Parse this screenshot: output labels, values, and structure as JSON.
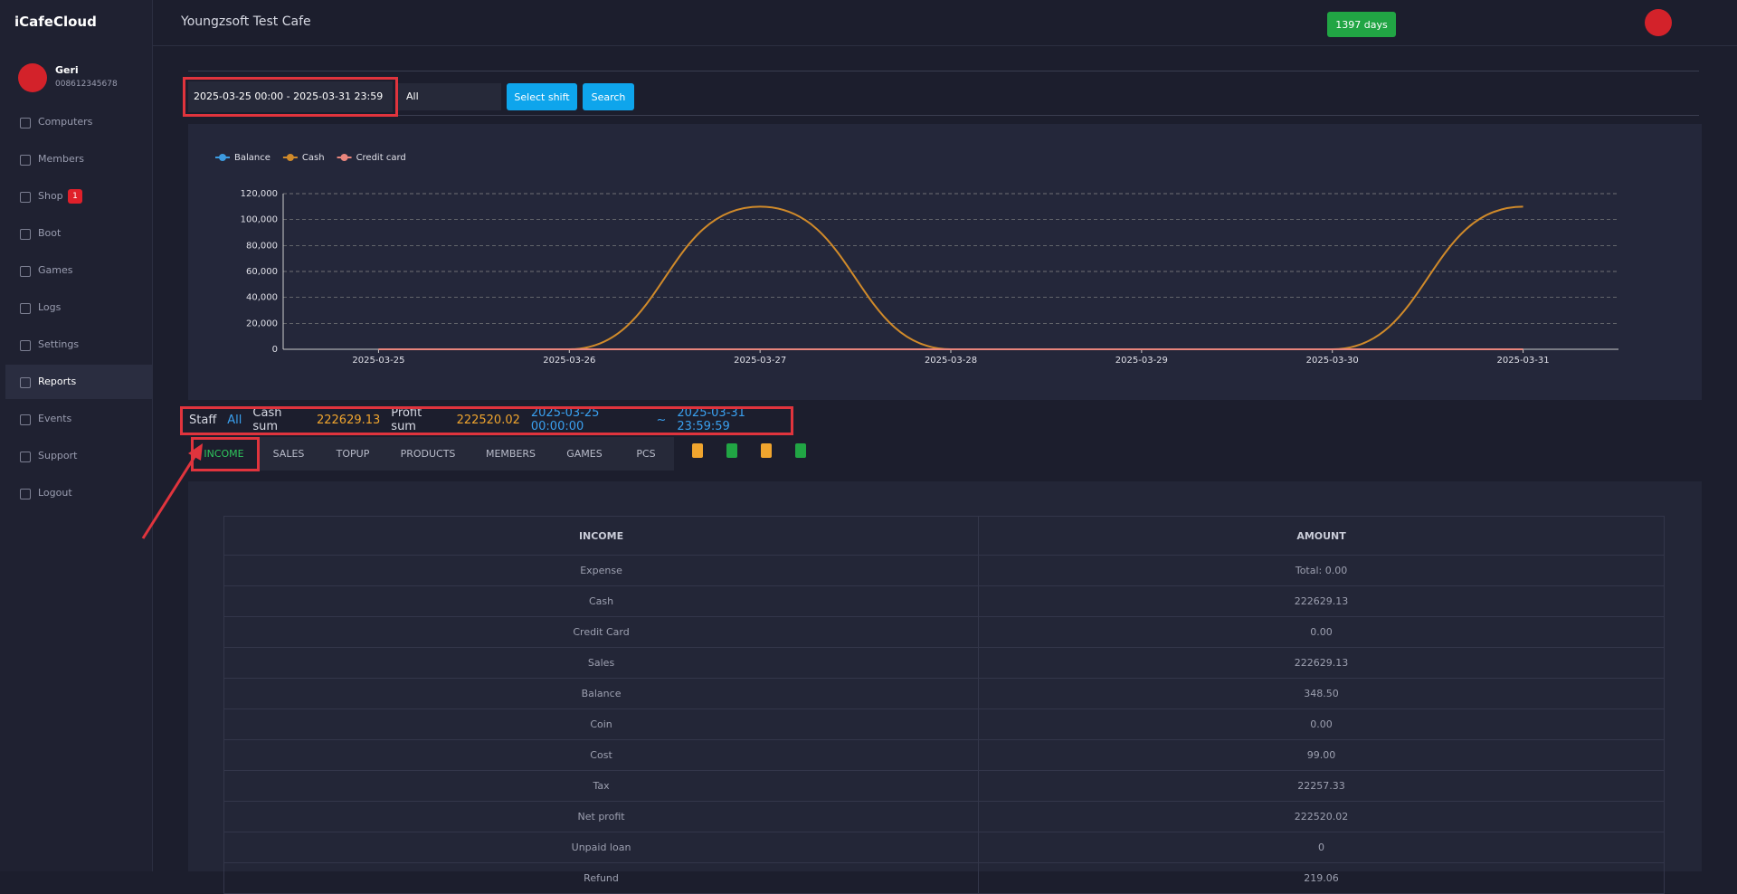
{
  "sidebar": {
    "logo": "iCafeCloud",
    "user": {
      "name": "Geri",
      "phone": "008612345678"
    },
    "items": [
      "Computers",
      "Members",
      "Shop",
      "Boot",
      "Games",
      "Logs",
      "Settings",
      "Reports",
      "Events",
      "Support",
      "Logout"
    ],
    "shop_badge": "1",
    "active": "Reports"
  },
  "header": {
    "title": "Youngzsoft Test Cafe",
    "days": "1397 days"
  },
  "filter": {
    "date_range": "2025-03-25 00:00 - 2025-03-31 23:59",
    "shift": "All",
    "select_shift": "Select shift",
    "search": "Search"
  },
  "chart_data": {
    "type": "line",
    "categories": [
      "2025-03-25",
      "2025-03-26",
      "2025-03-27",
      "2025-03-28",
      "2025-03-29",
      "2025-03-30",
      "2025-03-31"
    ],
    "series": [
      {
        "name": "Balance",
        "color": "#3d9be0",
        "values": [
          0,
          0,
          0,
          0,
          0,
          0,
          0
        ]
      },
      {
        "name": "Cash",
        "color": "#d08a2a",
        "values": [
          0,
          0,
          110000,
          0,
          0,
          0,
          110000
        ]
      },
      {
        "name": "Credit card",
        "color": "#e8857c",
        "values": [
          0,
          0,
          0,
          0,
          0,
          0,
          0
        ]
      }
    ],
    "ylim": [
      0,
      120000
    ],
    "yticks": [
      0,
      {
        "value": 20000,
        "label": "20,000"
      },
      {
        "value": 40000,
        "label": "40,000"
      },
      {
        "value": 60000,
        "label": "60,000"
      },
      {
        "value": 80000,
        "label": "80,000"
      },
      {
        "value": 100000,
        "label": "100,000"
      },
      {
        "value": 120000,
        "label": "120,000"
      }
    ],
    "grid": true
  },
  "summary": {
    "staff_label": "Staff",
    "staff": "All",
    "cash_label": "Cash sum",
    "cash": "222629.13",
    "profit_label": "Profit sum",
    "profit": "222520.02",
    "from": "2025-03-25 00:00:00",
    "sep": "~",
    "to": "2025-03-31 23:59:59"
  },
  "tabs": [
    "INCOME",
    "SALES",
    "TOPUP",
    "PRODUCTS",
    "MEMBERS",
    "GAMES",
    "PCS"
  ],
  "table": {
    "header": [
      "INCOME",
      "AMOUNT"
    ],
    "rows": [
      [
        "Expense",
        "Total: 0.00"
      ],
      [
        "Cash",
        "222629.13"
      ],
      [
        "Credit Card",
        "0.00"
      ],
      [
        "Sales",
        "222629.13"
      ],
      [
        "Balance",
        "348.50"
      ],
      [
        "Coin",
        "0.00"
      ],
      [
        "Cost",
        "99.00"
      ],
      [
        "Tax",
        "22257.33"
      ],
      [
        "Net profit",
        "222520.02"
      ],
      [
        "Unpaid loan",
        "0"
      ],
      [
        "Refund",
        "219.06"
      ]
    ]
  }
}
